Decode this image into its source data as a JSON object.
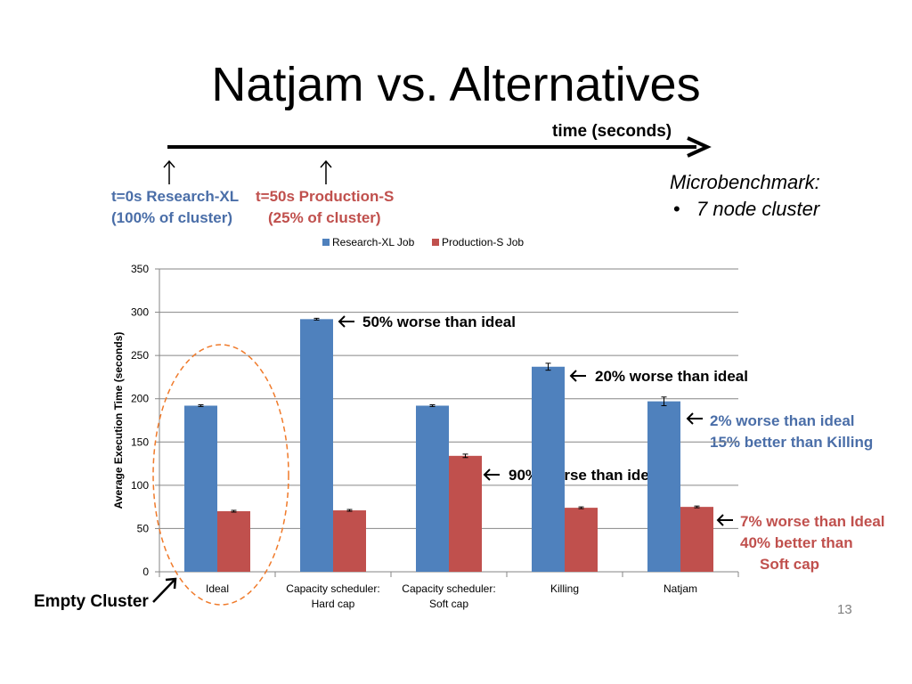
{
  "slide": {
    "title": "Natjam vs. Alternatives",
    "timeline_label": "time (seconds)",
    "event1_line1": "t=0s Research-XL",
    "event1_line2": "(100% of cluster)",
    "event2_line1": "t=50s Production-S",
    "event2_line2": "(25% of cluster)",
    "micro_title": "Microbenchmark:",
    "micro_bullet": "7 node cluster",
    "empty_cluster": "Empty Cluster",
    "page_number": "13",
    "annotations": {
      "a1": "50% worse than ideal",
      "a2": "20% worse than ideal",
      "a3_line1": "2% worse than ideal",
      "a3_line2": "15% better than Killing",
      "a4": "90% worse than ideal",
      "a5_line1": "7% worse than Ideal",
      "a5_line2": "40% better than",
      "a5_line3": "Soft cap"
    }
  },
  "colors": {
    "research": "#4f81bd",
    "production": "#c0504d",
    "annot_blue": "#4a6ea8",
    "annot_red": "#c0504d",
    "ellipse": "#f07a2a",
    "grid": "#868686"
  },
  "chart_data": {
    "type": "bar",
    "categories": [
      [
        "Ideal"
      ],
      [
        "Capacity scheduler:",
        "Hard cap"
      ],
      [
        "Capacity scheduler:",
        "Soft cap"
      ],
      [
        "Killing"
      ],
      [
        "Natjam"
      ]
    ],
    "series": [
      {
        "name": "Research-XL Job",
        "values": [
          192,
          292,
          192,
          237,
          197
        ],
        "errors": [
          1,
          1,
          1,
          4,
          5
        ]
      },
      {
        "name": "Production-S Job",
        "values": [
          70,
          71,
          134,
          74,
          75
        ],
        "errors": [
          1,
          1,
          2,
          1,
          1
        ]
      }
    ],
    "xlabel": "",
    "ylabel": "Average Execution Time (seconds)",
    "ylim": [
      0,
      350
    ],
    "yticks": [
      0,
      50,
      100,
      150,
      200,
      250,
      300,
      350
    ],
    "grid": true,
    "legend": "top"
  }
}
